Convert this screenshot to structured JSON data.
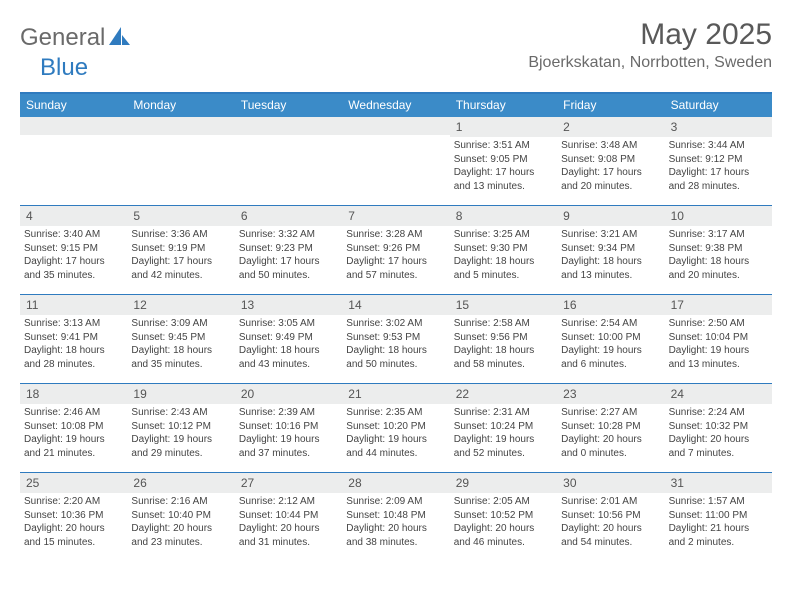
{
  "brand": {
    "word1": "General",
    "word2": "Blue",
    "word1_color": "#6a6a6a",
    "word2_color": "#2f7bbf",
    "sail_color": "#2f7bbf"
  },
  "title": "May 2025",
  "location": "Bjoerkskatan, Norrbotten, Sweden",
  "colors": {
    "header_bar": "#3b8bc8",
    "header_border": "#2f7bbf",
    "daynum_bg": "#eceded",
    "text": "#444444"
  },
  "day_names": [
    "Sunday",
    "Monday",
    "Tuesday",
    "Wednesday",
    "Thursday",
    "Friday",
    "Saturday"
  ],
  "weeks": [
    [
      null,
      null,
      null,
      null,
      {
        "n": "1",
        "sr": "3:51 AM",
        "ss": "9:05 PM",
        "dl": "17 hours and 13 minutes."
      },
      {
        "n": "2",
        "sr": "3:48 AM",
        "ss": "9:08 PM",
        "dl": "17 hours and 20 minutes."
      },
      {
        "n": "3",
        "sr": "3:44 AM",
        "ss": "9:12 PM",
        "dl": "17 hours and 28 minutes."
      }
    ],
    [
      {
        "n": "4",
        "sr": "3:40 AM",
        "ss": "9:15 PM",
        "dl": "17 hours and 35 minutes."
      },
      {
        "n": "5",
        "sr": "3:36 AM",
        "ss": "9:19 PM",
        "dl": "17 hours and 42 minutes."
      },
      {
        "n": "6",
        "sr": "3:32 AM",
        "ss": "9:23 PM",
        "dl": "17 hours and 50 minutes."
      },
      {
        "n": "7",
        "sr": "3:28 AM",
        "ss": "9:26 PM",
        "dl": "17 hours and 57 minutes."
      },
      {
        "n": "8",
        "sr": "3:25 AM",
        "ss": "9:30 PM",
        "dl": "18 hours and 5 minutes."
      },
      {
        "n": "9",
        "sr": "3:21 AM",
        "ss": "9:34 PM",
        "dl": "18 hours and 13 minutes."
      },
      {
        "n": "10",
        "sr": "3:17 AM",
        "ss": "9:38 PM",
        "dl": "18 hours and 20 minutes."
      }
    ],
    [
      {
        "n": "11",
        "sr": "3:13 AM",
        "ss": "9:41 PM",
        "dl": "18 hours and 28 minutes."
      },
      {
        "n": "12",
        "sr": "3:09 AM",
        "ss": "9:45 PM",
        "dl": "18 hours and 35 minutes."
      },
      {
        "n": "13",
        "sr": "3:05 AM",
        "ss": "9:49 PM",
        "dl": "18 hours and 43 minutes."
      },
      {
        "n": "14",
        "sr": "3:02 AM",
        "ss": "9:53 PM",
        "dl": "18 hours and 50 minutes."
      },
      {
        "n": "15",
        "sr": "2:58 AM",
        "ss": "9:56 PM",
        "dl": "18 hours and 58 minutes."
      },
      {
        "n": "16",
        "sr": "2:54 AM",
        "ss": "10:00 PM",
        "dl": "19 hours and 6 minutes."
      },
      {
        "n": "17",
        "sr": "2:50 AM",
        "ss": "10:04 PM",
        "dl": "19 hours and 13 minutes."
      }
    ],
    [
      {
        "n": "18",
        "sr": "2:46 AM",
        "ss": "10:08 PM",
        "dl": "19 hours and 21 minutes."
      },
      {
        "n": "19",
        "sr": "2:43 AM",
        "ss": "10:12 PM",
        "dl": "19 hours and 29 minutes."
      },
      {
        "n": "20",
        "sr": "2:39 AM",
        "ss": "10:16 PM",
        "dl": "19 hours and 37 minutes."
      },
      {
        "n": "21",
        "sr": "2:35 AM",
        "ss": "10:20 PM",
        "dl": "19 hours and 44 minutes."
      },
      {
        "n": "22",
        "sr": "2:31 AM",
        "ss": "10:24 PM",
        "dl": "19 hours and 52 minutes."
      },
      {
        "n": "23",
        "sr": "2:27 AM",
        "ss": "10:28 PM",
        "dl": "20 hours and 0 minutes."
      },
      {
        "n": "24",
        "sr": "2:24 AM",
        "ss": "10:32 PM",
        "dl": "20 hours and 7 minutes."
      }
    ],
    [
      {
        "n": "25",
        "sr": "2:20 AM",
        "ss": "10:36 PM",
        "dl": "20 hours and 15 minutes."
      },
      {
        "n": "26",
        "sr": "2:16 AM",
        "ss": "10:40 PM",
        "dl": "20 hours and 23 minutes."
      },
      {
        "n": "27",
        "sr": "2:12 AM",
        "ss": "10:44 PM",
        "dl": "20 hours and 31 minutes."
      },
      {
        "n": "28",
        "sr": "2:09 AM",
        "ss": "10:48 PM",
        "dl": "20 hours and 38 minutes."
      },
      {
        "n": "29",
        "sr": "2:05 AM",
        "ss": "10:52 PM",
        "dl": "20 hours and 46 minutes."
      },
      {
        "n": "30",
        "sr": "2:01 AM",
        "ss": "10:56 PM",
        "dl": "20 hours and 54 minutes."
      },
      {
        "n": "31",
        "sr": "1:57 AM",
        "ss": "11:00 PM",
        "dl": "21 hours and 2 minutes."
      }
    ]
  ],
  "labels": {
    "sunrise": "Sunrise:",
    "sunset": "Sunset:",
    "daylight": "Daylight:"
  }
}
